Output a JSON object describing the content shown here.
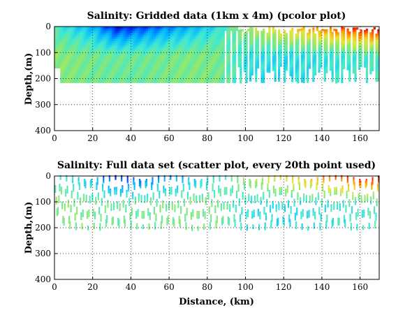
{
  "chart_data": [
    {
      "type": "heatmap",
      "title": "Salinity: Gridded data (1km x 4m) (pcolor plot)",
      "xlabel": "",
      "ylabel": "Depth,(m)",
      "xlim": [
        0,
        170
      ],
      "ylim": [
        400,
        0
      ],
      "xticks": [
        "0",
        "20",
        "40",
        "60",
        "80",
        "100",
        "120",
        "140",
        "160"
      ],
      "yticks": [
        "0",
        "100",
        "200",
        "300",
        "400"
      ],
      "grid": "dotted",
      "cell": {
        "dx_km": 1,
        "dz_m": 4
      },
      "data_max_depth_m": 210,
      "colorscale": [
        "#00009a",
        "#0040ff",
        "#00b4ff",
        "#3ce8d8",
        "#8ce872",
        "#e6e63a",
        "#ff9a00",
        "#ff2a00",
        "#9a0000"
      ],
      "salinity_levels_by_distance": [
        {
          "x": 0,
          "surface": 0.4,
          "deep": 0.5
        },
        {
          "x": 10,
          "surface": 0.32,
          "deep": 0.48
        },
        {
          "x": 20,
          "surface": 0.25,
          "deep": 0.46
        },
        {
          "x": 32,
          "surface": 0.06,
          "deep": 0.45
        },
        {
          "x": 45,
          "surface": 0.12,
          "deep": 0.45
        },
        {
          "x": 60,
          "surface": 0.2,
          "deep": 0.47
        },
        {
          "x": 75,
          "surface": 0.28,
          "deep": 0.48
        },
        {
          "x": 85,
          "surface": 0.35,
          "deep": 0.47
        },
        {
          "x": 100,
          "surface": 0.55,
          "deep": 0.36
        },
        {
          "x": 120,
          "surface": 0.7,
          "deep": 0.34
        },
        {
          "x": 140,
          "surface": 0.8,
          "deep": 0.36
        },
        {
          "x": 155,
          "surface": 0.92,
          "deep": 0.38
        },
        {
          "x": 170,
          "surface": 0.98,
          "deep": 0.4
        }
      ]
    },
    {
      "type": "scatter",
      "title": "Salinity: Full data set (scatter plot, every 20th point used)",
      "xlabel": "Distance, (km)",
      "ylabel": "Depth,(m)",
      "xlim": [
        0,
        170
      ],
      "ylim": [
        400,
        0
      ],
      "xticks": [
        "0",
        "20",
        "40",
        "60",
        "80",
        "100",
        "120",
        "140",
        "160"
      ],
      "yticks": [
        "0",
        "100",
        "200",
        "300",
        "400"
      ],
      "grid": "dotted",
      "sampling": "every 20th point",
      "data_max_depth_m": 210,
      "colorscale": [
        "#00009a",
        "#0040ff",
        "#00b4ff",
        "#3ce8d8",
        "#8ce872",
        "#e6e63a",
        "#ff9a00",
        "#ff2a00",
        "#9a0000"
      ],
      "salinity_levels_by_distance": [
        {
          "x": 0,
          "surface": 0.4,
          "deep": 0.5
        },
        {
          "x": 10,
          "surface": 0.32,
          "deep": 0.48
        },
        {
          "x": 20,
          "surface": 0.25,
          "deep": 0.46
        },
        {
          "x": 32,
          "surface": 0.06,
          "deep": 0.45
        },
        {
          "x": 45,
          "surface": 0.12,
          "deep": 0.45
        },
        {
          "x": 60,
          "surface": 0.2,
          "deep": 0.47
        },
        {
          "x": 75,
          "surface": 0.28,
          "deep": 0.48
        },
        {
          "x": 85,
          "surface": 0.35,
          "deep": 0.47
        },
        {
          "x": 100,
          "surface": 0.55,
          "deep": 0.36
        },
        {
          "x": 120,
          "surface": 0.7,
          "deep": 0.34
        },
        {
          "x": 140,
          "surface": 0.8,
          "deep": 0.36
        },
        {
          "x": 155,
          "surface": 0.92,
          "deep": 0.38
        },
        {
          "x": 170,
          "surface": 0.98,
          "deep": 0.4
        }
      ]
    }
  ]
}
